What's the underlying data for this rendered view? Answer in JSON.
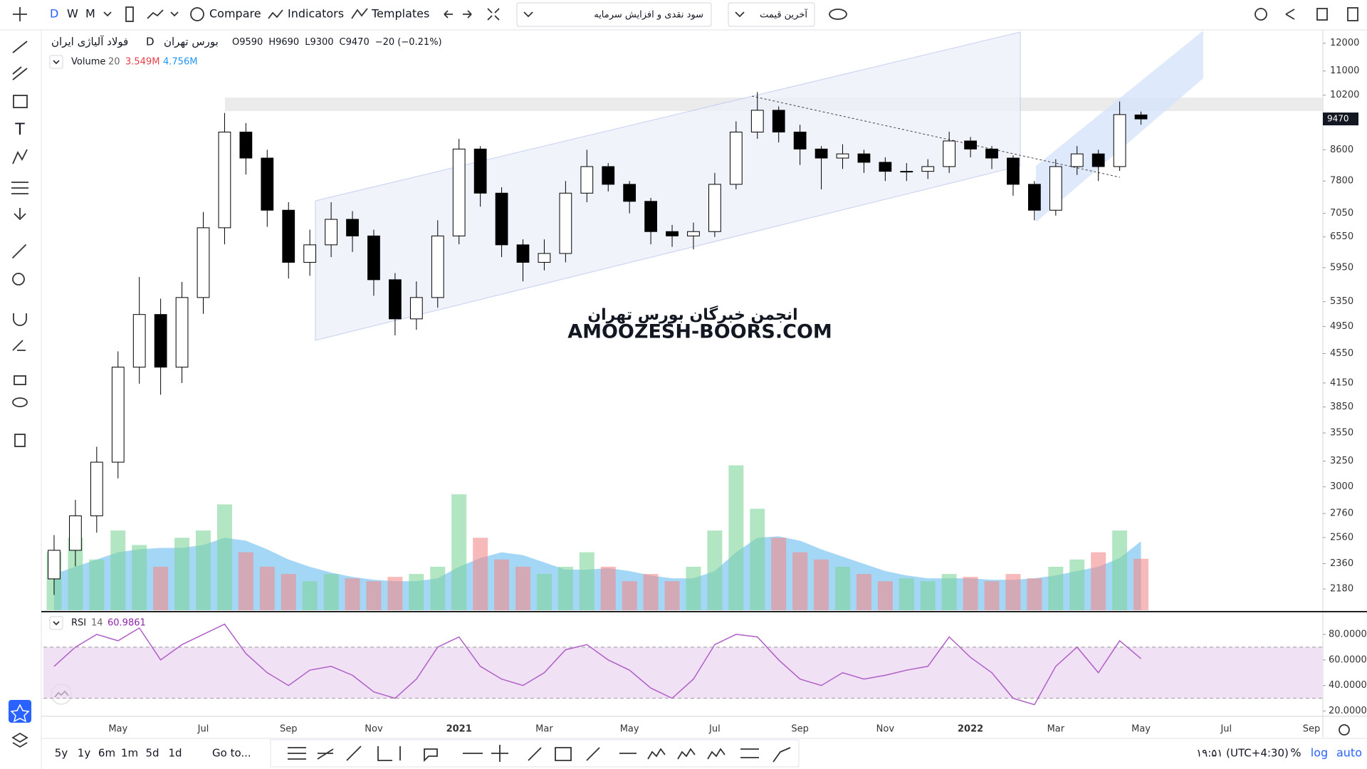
{
  "toolbar": {
    "intervals": [
      "D",
      "W",
      "M"
    ],
    "buttons": [
      "Compare",
      "Indicators",
      "Templates"
    ],
    "dropdowns": [
      "سود نقدی و افزایش سرمایه",
      "آخرین قیمت"
    ]
  },
  "symbol": {
    "name": "فولاد آلیاژی ایران",
    "interval": "D",
    "exchange": "بورس تهران",
    "ohlc_keys": [
      "O",
      "H",
      "L",
      "C"
    ],
    "change": "−20 (−0.21%)"
  },
  "watermark": [
    "انجمن خبرگان بورس تهران",
    "AMOOZESH-BOORS.COM"
  ],
  "bottom": {
    "ranges": [
      "5y",
      "1y",
      "6m",
      "1m",
      "5d",
      "1d"
    ],
    "goto": "Go to...",
    "time": "۱۹:۵۱ (UTC+4:30)",
    "scale_buttons": [
      "%",
      "log",
      "auto"
    ]
  },
  "chart_data": [
    {
      "type": "candlestick",
      "log_scale": true,
      "grid": false,
      "categories": [
        null,
        null,
        null,
        "May",
        null,
        null,
        null,
        "Jul",
        null,
        null,
        null,
        "Sep",
        null,
        null,
        null,
        "Nov",
        null,
        null,
        null,
        "2021",
        null,
        null,
        null,
        "Mar",
        null,
        null,
        null,
        "May",
        null,
        null,
        null,
        "Jul",
        null,
        null,
        null,
        "Sep",
        null,
        null,
        null,
        "Nov",
        null,
        null,
        null,
        "2022",
        null,
        null,
        null,
        "Mar",
        null,
        null,
        null,
        "May",
        null,
        null,
        null,
        "Jul",
        null,
        null,
        null,
        "Sep"
      ],
      "open": [
        2250,
        2460,
        2740,
        3240,
        4360,
        5140,
        4360,
        5420,
        6740,
        9090,
        8380,
        7120,
        6050,
        6390,
        6920,
        6570,
        5730,
        5070,
        5420,
        6570,
        8620,
        7510,
        6390,
        6050,
        6220,
        7510,
        8160,
        7720,
        7320,
        6660,
        6570,
        6660,
        7720,
        9090,
        9730,
        9090,
        8620,
        8380,
        8490,
        8270,
        8040,
        8040,
        8160,
        8840,
        8620,
        8380,
        7720,
        7120,
        8160,
        8490,
        8160,
        9590,
        null,
        null,
        null,
        null,
        null,
        null,
        null,
        null
      ],
      "high": [
        2580,
        2880,
        3400,
        4580,
        5780,
        5400,
        5690,
        7080,
        9650,
        9350,
        8600,
        7300,
        6700,
        7300,
        7100,
        6700,
        5850,
        5700,
        6900,
        8900,
        8700,
        7650,
        6500,
        6500,
        7800,
        8600,
        8250,
        7800,
        7400,
        6800,
        6850,
        8000,
        9400,
        10300,
        9850,
        9300,
        8700,
        8750,
        8600,
        8400,
        8250,
        8350,
        9100,
        8950,
        8700,
        8450,
        7800,
        8350,
        8700,
        8600,
        10000,
        9690,
        null,
        null,
        null,
        null,
        null,
        null,
        null,
        null
      ],
      "low": [
        2140,
        2340,
        2600,
        3080,
        4140,
        4000,
        4150,
        5150,
        6400,
        7960,
        6760,
        5750,
        5800,
        6150,
        6250,
        5450,
        4815,
        4900,
        5250,
        6400,
        7200,
        6150,
        5700,
        5900,
        6050,
        7300,
        7550,
        7050,
        6400,
        6350,
        6300,
        6550,
        7600,
        8900,
        8800,
        8200,
        7600,
        8100,
        8000,
        7800,
        7800,
        7850,
        8000,
        8400,
        8100,
        7450,
        6900,
        7000,
        7950,
        7800,
        8050,
        9300,
        null,
        null,
        null,
        null,
        null,
        null,
        null,
        null
      ],
      "close": [
        2460,
        2740,
        3240,
        4360,
        5140,
        4360,
        5420,
        6740,
        9090,
        8380,
        7120,
        6050,
        6390,
        6920,
        6570,
        5730,
        5070,
        5420,
        6570,
        8620,
        7510,
        6390,
        6050,
        6220,
        7510,
        8160,
        7720,
        7320,
        6660,
        6570,
        6660,
        7720,
        9090,
        9730,
        9090,
        8620,
        8380,
        8490,
        8270,
        8040,
        8040,
        8160,
        8840,
        8620,
        8380,
        7720,
        7120,
        8160,
        8490,
        8160,
        9600,
        9470,
        null,
        null,
        null,
        null,
        null,
        null,
        null,
        null
      ],
      "ylim": [
        2040,
        12480
      ],
      "yticks": [
        12000,
        11000,
        10200,
        8600,
        7800,
        7050,
        6550,
        5950,
        5350,
        4950,
        4550,
        4150,
        3850,
        3550,
        3250,
        3000,
        2760,
        2560,
        2360,
        2180
      ],
      "up_color": "#ffffff",
      "down_color": "#000000",
      "volume": {
        "name": "Volume",
        "length": 20,
        "legend_labels": [
          "3.549M",
          "4.756M"
        ],
        "ylim": [
          0,
          40
        ],
        "up_color": "#7fd39a",
        "down_color": "#f28b8b",
        "ma_color": "#5ab4ee",
        "values": [
          4,
          5,
          3.5,
          5.5,
          4.5,
          3,
          5,
          5.5,
          7.3,
          4,
          3,
          2.5,
          2,
          2.5,
          2.2,
          2,
          2.3,
          2.5,
          3,
          8,
          5,
          3.5,
          3,
          2.5,
          3,
          4,
          3,
          2,
          2.5,
          2,
          3,
          5.5,
          10,
          7,
          5,
          4,
          3.5,
          3,
          2.5,
          2,
          2.2,
          2,
          2.5,
          2.3,
          2,
          2.5,
          2.2,
          3,
          3.5,
          4,
          5.5,
          3.549,
          null,
          null,
          null,
          null,
          null,
          null,
          null,
          null
        ],
        "ma": [
          2.5,
          3,
          3.5,
          4,
          4.2,
          4.3,
          4.3,
          4.5,
          5,
          4.8,
          4.2,
          3.5,
          3,
          2.6,
          2.3,
          2.1,
          2,
          2,
          2.2,
          3,
          3.6,
          4,
          3.8,
          3.3,
          2.8,
          2.8,
          2.9,
          2.7,
          2.4,
          2.2,
          2.2,
          2.7,
          4,
          5,
          5.1,
          4.8,
          4.2,
          3.7,
          3.2,
          2.7,
          2.4,
          2.2,
          2.2,
          2.2,
          2.1,
          2.1,
          2.2,
          2.4,
          2.7,
          3,
          3.6,
          4.756,
          null,
          null,
          null,
          null,
          null,
          null,
          null,
          null
        ]
      }
    },
    {
      "type": "line",
      "name": "RSI",
      "length": 14,
      "color": "#b05ec8",
      "band_color": "#ead6f0",
      "values": [
        55,
        70,
        80,
        75,
        85,
        60,
        72,
        80,
        88,
        65,
        50,
        40,
        52,
        55,
        48,
        35,
        30,
        45,
        70,
        78,
        55,
        45,
        40,
        50,
        68,
        72,
        60,
        52,
        38,
        30,
        45,
        72,
        80,
        78,
        60,
        45,
        40,
        50,
        45,
        48,
        52,
        55,
        78,
        62,
        50,
        30,
        25,
        55,
        70,
        50,
        75,
        60.9861,
        null,
        null,
        null,
        null,
        null,
        null,
        null,
        null
      ],
      "bands": [
        30,
        70
      ],
      "ylim": [
        17,
        95
      ],
      "yticks": [
        {
          "value": 80,
          "label": "80.0000"
        },
        {
          "value": 60,
          "label": "60.0000"
        },
        {
          "value": 40,
          "label": "40.0000"
        },
        {
          "value": 20,
          "label": "20.0000"
        }
      ]
    }
  ]
}
